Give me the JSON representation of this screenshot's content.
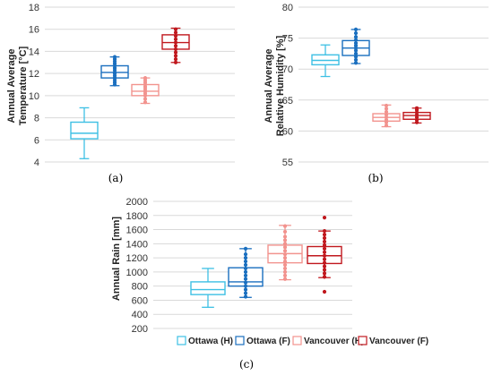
{
  "colors": {
    "ottawa_h": "#3ec0e4",
    "ottawa_f": "#1a6fbf",
    "vancouver_h": "#f2938e",
    "vancouver_f": "#c0181e"
  },
  "legend": [
    "Ottawa (H)",
    "Ottawa (F)",
    "Vancouver (H)",
    "Vancouver (F)"
  ],
  "chart_data": [
    {
      "type": "boxplot",
      "panel_label": "(a)",
      "ylabel_lines": [
        "Annual Average",
        "Temperature [°C]"
      ],
      "ylim": [
        4,
        18
      ],
      "yticks": [
        4,
        6,
        8,
        10,
        12,
        14,
        16,
        18
      ],
      "grid": true,
      "series": [
        {
          "name": "Ottawa (H)",
          "color": "ottawa_h",
          "min": 4.3,
          "q1": 6.1,
          "median": 6.6,
          "q3": 7.6,
          "max": 8.9,
          "points": []
        },
        {
          "name": "Ottawa (F)",
          "color": "ottawa_f",
          "min": 10.9,
          "q1": 11.6,
          "median": 12.1,
          "q3": 12.7,
          "max": 13.5,
          "points": [
            11.0,
            11.2,
            11.4,
            11.6,
            11.8,
            12.0,
            12.1,
            12.3,
            12.5,
            12.7,
            12.9,
            13.1,
            13.3,
            13.5
          ]
        },
        {
          "name": "Vancouver (H)",
          "color": "vancouver_h",
          "min": 9.3,
          "q1": 10.0,
          "median": 10.4,
          "q3": 11.0,
          "max": 11.6,
          "points": [
            9.4,
            9.7,
            10.0,
            10.2,
            10.4,
            10.6,
            10.8,
            11.0,
            11.2,
            11.4,
            11.6
          ]
        },
        {
          "name": "Vancouver (F)",
          "color": "vancouver_f",
          "min": 13.0,
          "q1": 14.2,
          "median": 14.8,
          "q3": 15.5,
          "max": 16.1,
          "points": [
            13.0,
            13.3,
            13.6,
            13.9,
            14.2,
            14.5,
            14.8,
            15.1,
            15.4,
            15.7,
            16.0
          ]
        }
      ]
    },
    {
      "type": "boxplot",
      "panel_label": "(b)",
      "ylabel_lines": [
        "Annual Average",
        "Relative Humidity [%]"
      ],
      "ylim": [
        55,
        80
      ],
      "yticks": [
        55,
        60,
        65,
        70,
        75,
        80
      ],
      "grid": true,
      "series": [
        {
          "name": "Ottawa (H)",
          "color": "ottawa_h",
          "min": 68.8,
          "q1": 70.7,
          "median": 71.4,
          "q3": 72.3,
          "max": 73.9,
          "points": []
        },
        {
          "name": "Ottawa (F)",
          "color": "ottawa_f",
          "min": 70.9,
          "q1": 72.2,
          "median": 73.4,
          "q3": 74.6,
          "max": 76.4,
          "points": [
            71.0,
            71.5,
            72.0,
            72.5,
            73.0,
            73.4,
            73.8,
            74.2,
            74.7,
            75.2,
            75.8,
            76.4
          ]
        },
        {
          "name": "Vancouver (H)",
          "color": "vancouver_h",
          "min": 60.7,
          "q1": 61.6,
          "median": 62.2,
          "q3": 62.8,
          "max": 64.2,
          "points": [
            60.9,
            61.4,
            61.8,
            62.2,
            62.6,
            63.1,
            63.6,
            64.1
          ]
        },
        {
          "name": "Vancouver (F)",
          "color": "vancouver_f",
          "min": 61.3,
          "q1": 61.9,
          "median": 62.5,
          "q3": 63.0,
          "max": 63.7,
          "points": [
            61.4,
            61.8,
            62.2,
            62.6,
            63.0,
            63.4,
            63.7
          ]
        }
      ]
    },
    {
      "type": "boxplot",
      "panel_label": "(c)",
      "ylabel_lines": [
        "Annual Rain [mm]"
      ],
      "ylim": [
        200,
        2000
      ],
      "yticks": [
        200,
        400,
        600,
        800,
        1000,
        1200,
        1400,
        1600,
        1800,
        2000
      ],
      "grid": true,
      "series": [
        {
          "name": "Ottawa (H)",
          "color": "ottawa_h",
          "min": 500,
          "q1": 680,
          "median": 750,
          "q3": 860,
          "max": 1050,
          "points": []
        },
        {
          "name": "Ottawa (F)",
          "color": "ottawa_f",
          "min": 640,
          "q1": 800,
          "median": 860,
          "q3": 1060,
          "max": 1330,
          "points": [
            650,
            700,
            750,
            800,
            850,
            900,
            950,
            1000,
            1050,
            1100,
            1150,
            1200,
            1250,
            1330
          ]
        },
        {
          "name": "Vancouver (H)",
          "color": "vancouver_h",
          "min": 890,
          "q1": 1130,
          "median": 1260,
          "q3": 1380,
          "max": 1660,
          "points": [
            900,
            950,
            1000,
            1050,
            1100,
            1150,
            1200,
            1250,
            1300,
            1350,
            1400,
            1450,
            1500,
            1570,
            1650
          ]
        },
        {
          "name": "Vancouver (F)",
          "color": "vancouver_f",
          "min": 920,
          "q1": 1120,
          "median": 1230,
          "q3": 1360,
          "max": 1580,
          "points": [
            720,
            930,
            980,
            1030,
            1080,
            1130,
            1180,
            1230,
            1280,
            1330,
            1380,
            1430,
            1480,
            1530,
            1580,
            1770
          ]
        }
      ]
    }
  ]
}
